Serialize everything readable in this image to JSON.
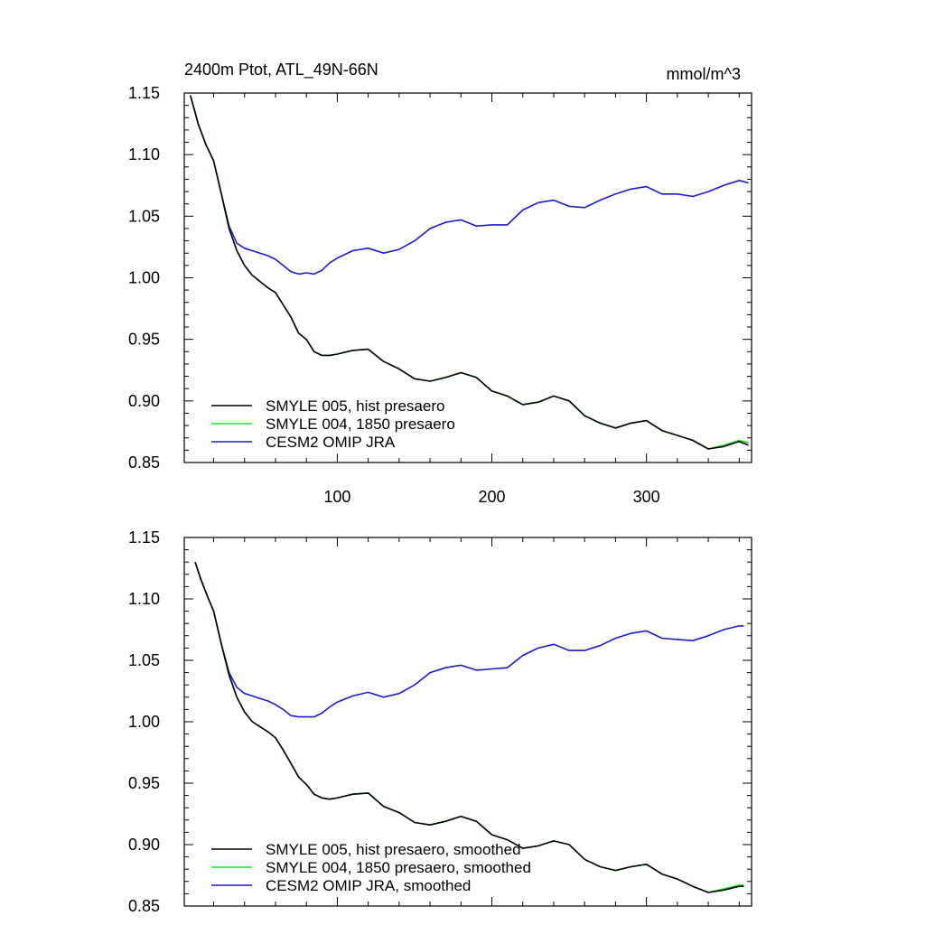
{
  "charts": [
    {
      "type": "line",
      "title": "2400m Ptot, ATL_49N-66N",
      "units_label": "mmol/m^3",
      "xlim": [
        1,
        368
      ],
      "ylim": [
        0.85,
        1.15
      ],
      "xticks": [
        100,
        200,
        300
      ],
      "xtick_labels": [
        "100",
        "200",
        "300"
      ],
      "yticks": [
        0.85,
        0.9,
        0.95,
        1.0,
        1.05,
        1.1,
        1.15
      ],
      "ytick_labels": [
        "0.85",
        "0.90",
        "0.95",
        "1.00",
        "1.05",
        "1.10",
        "1.15"
      ],
      "legend_position": "bottom-left",
      "series": [
        {
          "name": "SMYLE 005, hist presaero",
          "color": "#000000",
          "x": [
            5,
            10,
            15,
            20,
            25,
            30,
            35,
            40,
            45,
            50,
            55,
            60,
            65,
            70,
            75,
            80,
            85,
            90,
            95,
            100,
            110,
            120,
            130,
            140,
            150,
            160,
            170,
            180,
            190,
            200,
            210,
            220,
            230,
            240,
            250,
            260,
            270,
            280,
            290,
            300,
            310,
            320,
            330,
            340,
            350,
            360,
            366
          ],
          "values": [
            1.148,
            1.125,
            1.108,
            1.095,
            1.068,
            1.04,
            1.022,
            1.01,
            1.002,
            0.997,
            0.992,
            0.988,
            0.978,
            0.968,
            0.955,
            0.95,
            0.94,
            0.937,
            0.937,
            0.938,
            0.941,
            0.942,
            0.932,
            0.926,
            0.918,
            0.916,
            0.919,
            0.923,
            0.919,
            0.908,
            0.904,
            0.897,
            0.899,
            0.904,
            0.9,
            0.888,
            0.882,
            0.878,
            0.882,
            0.884,
            0.876,
            0.872,
            0.868,
            0.861,
            0.863,
            0.867,
            0.864
          ]
        },
        {
          "name": "SMYLE 004, 1850 presaero",
          "color": "#1be51b",
          "x": [
            5,
            10,
            15,
            20,
            25,
            30,
            35,
            40,
            45,
            50,
            55,
            60,
            65,
            70,
            75,
            80,
            85,
            90,
            95,
            100,
            110,
            120,
            130,
            140,
            150,
            160,
            170,
            180,
            190,
            200,
            210,
            220,
            230,
            240,
            250,
            260,
            270,
            280,
            290,
            300,
            310,
            320,
            330,
            340,
            350,
            360,
            366
          ],
          "values": [
            1.148,
            1.125,
            1.108,
            1.095,
            1.068,
            1.04,
            1.022,
            1.01,
            1.002,
            0.997,
            0.992,
            0.988,
            0.978,
            0.968,
            0.955,
            0.95,
            0.94,
            0.937,
            0.937,
            0.938,
            0.941,
            0.942,
            0.932,
            0.926,
            0.918,
            0.916,
            0.919,
            0.923,
            0.919,
            0.908,
            0.904,
            0.897,
            0.899,
            0.904,
            0.9,
            0.888,
            0.882,
            0.878,
            0.882,
            0.884,
            0.876,
            0.872,
            0.868,
            0.861,
            0.864,
            0.868,
            0.866
          ]
        },
        {
          "name": "CESM2 OMIP JRA",
          "color": "#1c1cc8",
          "x": [
            5,
            10,
            15,
            20,
            25,
            30,
            35,
            40,
            45,
            50,
            55,
            60,
            65,
            70,
            75,
            80,
            85,
            90,
            95,
            100,
            110,
            120,
            130,
            140,
            150,
            160,
            170,
            180,
            190,
            200,
            210,
            220,
            230,
            240,
            250,
            260,
            270,
            280,
            290,
            300,
            310,
            320,
            330,
            340,
            350,
            360,
            366
          ],
          "values": [
            1.148,
            1.125,
            1.108,
            1.095,
            1.068,
            1.042,
            1.028,
            1.024,
            1.022,
            1.02,
            1.018,
            1.015,
            1.01,
            1.005,
            1.003,
            1.004,
            1.003,
            1.006,
            1.012,
            1.016,
            1.022,
            1.024,
            1.02,
            1.023,
            1.03,
            1.04,
            1.045,
            1.047,
            1.042,
            1.043,
            1.043,
            1.055,
            1.061,
            1.063,
            1.058,
            1.057,
            1.063,
            1.068,
            1.072,
            1.074,
            1.068,
            1.068,
            1.066,
            1.07,
            1.075,
            1.079,
            1.077
          ]
        }
      ]
    },
    {
      "type": "line",
      "title": "",
      "units_label": "",
      "xlim": [
        1,
        368
      ],
      "ylim": [
        0.85,
        1.15
      ],
      "xticks": [
        100,
        200,
        300
      ],
      "xtick_labels": [],
      "yticks": [
        0.85,
        0.9,
        0.95,
        1.0,
        1.05,
        1.1,
        1.15
      ],
      "ytick_labels": [
        "0.85",
        "0.90",
        "0.95",
        "1.00",
        "1.05",
        "1.10",
        "1.15"
      ],
      "legend_position": "bottom-left",
      "series": [
        {
          "name": "SMYLE 005, hist presaero, smoothed",
          "color": "#000000",
          "x": [
            8,
            12,
            16,
            20,
            25,
            30,
            35,
            40,
            45,
            50,
            55,
            60,
            65,
            70,
            75,
            80,
            85,
            90,
            95,
            100,
            110,
            120,
            130,
            140,
            150,
            160,
            170,
            180,
            190,
            200,
            210,
            220,
            230,
            240,
            250,
            260,
            270,
            280,
            290,
            300,
            310,
            320,
            330,
            340,
            350,
            360,
            363
          ],
          "values": [
            1.13,
            1.115,
            1.102,
            1.09,
            1.063,
            1.038,
            1.02,
            1.008,
            1.0,
            0.996,
            0.992,
            0.987,
            0.977,
            0.966,
            0.955,
            0.949,
            0.941,
            0.938,
            0.937,
            0.938,
            0.941,
            0.942,
            0.931,
            0.926,
            0.918,
            0.916,
            0.919,
            0.923,
            0.919,
            0.908,
            0.904,
            0.897,
            0.899,
            0.903,
            0.9,
            0.888,
            0.882,
            0.879,
            0.882,
            0.884,
            0.876,
            0.872,
            0.866,
            0.861,
            0.863,
            0.866,
            0.866
          ]
        },
        {
          "name": "SMYLE 004, 1850 presaero, smoothed",
          "color": "#1be51b",
          "x": [
            8,
            12,
            16,
            20,
            25,
            30,
            35,
            40,
            45,
            50,
            55,
            60,
            65,
            70,
            75,
            80,
            85,
            90,
            95,
            100,
            110,
            120,
            130,
            140,
            150,
            160,
            170,
            180,
            190,
            200,
            210,
            220,
            230,
            240,
            250,
            260,
            270,
            280,
            290,
            300,
            310,
            320,
            330,
            340,
            350,
            360,
            363
          ],
          "values": [
            1.13,
            1.115,
            1.102,
            1.09,
            1.063,
            1.038,
            1.02,
            1.008,
            1.0,
            0.996,
            0.992,
            0.987,
            0.977,
            0.966,
            0.955,
            0.949,
            0.941,
            0.938,
            0.937,
            0.938,
            0.941,
            0.942,
            0.931,
            0.926,
            0.918,
            0.916,
            0.919,
            0.923,
            0.919,
            0.908,
            0.904,
            0.897,
            0.899,
            0.903,
            0.9,
            0.888,
            0.882,
            0.879,
            0.882,
            0.884,
            0.876,
            0.872,
            0.866,
            0.861,
            0.864,
            0.867,
            0.867
          ]
        },
        {
          "name": "CESM2 OMIP JRA, smoothed",
          "color": "#1c1cc8",
          "x": [
            8,
            12,
            16,
            20,
            25,
            30,
            35,
            40,
            45,
            50,
            55,
            60,
            65,
            70,
            75,
            80,
            85,
            90,
            95,
            100,
            110,
            120,
            130,
            140,
            150,
            160,
            170,
            180,
            190,
            200,
            210,
            220,
            230,
            240,
            250,
            260,
            270,
            280,
            290,
            300,
            310,
            320,
            330,
            340,
            350,
            360,
            363
          ],
          "values": [
            1.13,
            1.115,
            1.102,
            1.09,
            1.063,
            1.04,
            1.028,
            1.023,
            1.021,
            1.019,
            1.017,
            1.014,
            1.01,
            1.005,
            1.004,
            1.004,
            1.004,
            1.007,
            1.012,
            1.016,
            1.021,
            1.024,
            1.02,
            1.023,
            1.03,
            1.04,
            1.044,
            1.046,
            1.042,
            1.043,
            1.044,
            1.054,
            1.06,
            1.063,
            1.058,
            1.058,
            1.062,
            1.068,
            1.072,
            1.074,
            1.068,
            1.067,
            1.066,
            1.07,
            1.075,
            1.078,
            1.078
          ]
        }
      ]
    }
  ]
}
